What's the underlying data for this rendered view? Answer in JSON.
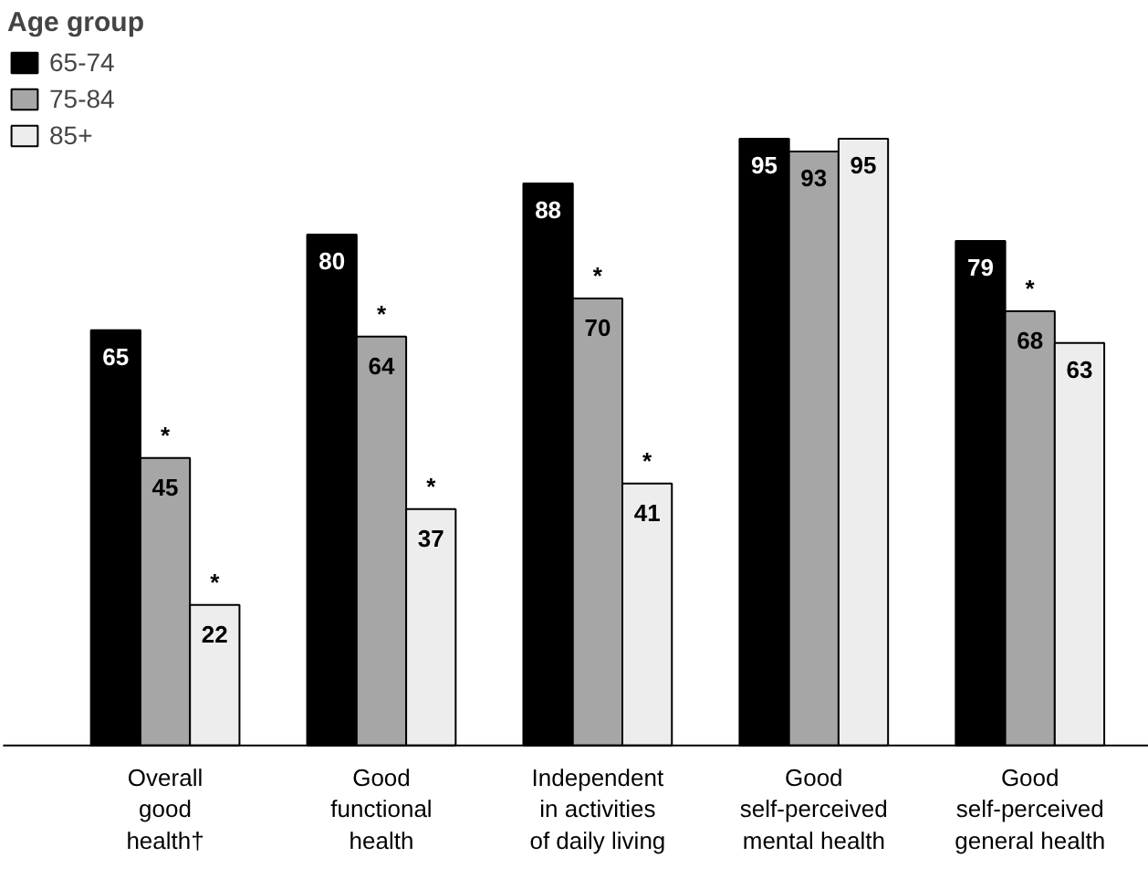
{
  "chart_data": {
    "type": "bar",
    "legend_title": "Age group",
    "legend": "top left",
    "categories": [
      "Overall\ngood\nhealth†",
      "Good\nfunctional\nhealth",
      "Independent\nin activities\nof daily living",
      "Good\nself-perceived\nmental health",
      "Good\nself-perceived\ngeneral health"
    ],
    "series": [
      {
        "name": "65-74",
        "color": "#000000",
        "values": [
          65,
          80,
          88,
          95,
          79
        ],
        "value_labels": [
          "65",
          "80",
          "88",
          "95",
          "79"
        ]
      },
      {
        "name": "75-84",
        "color": "#a6a6a6",
        "values": [
          45,
          64,
          70,
          93,
          68
        ],
        "value_labels": [
          "*\n45",
          "*\n64",
          "*\n70",
          "93",
          "*\n68"
        ]
      },
      {
        "name": "85+",
        "color": "#ededed",
        "values": [
          22,
          37,
          41,
          95,
          63
        ],
        "value_labels": [
          "*\n22",
          "*\n37",
          "*\n41",
          "95",
          "63"
        ]
      }
    ]
  }
}
